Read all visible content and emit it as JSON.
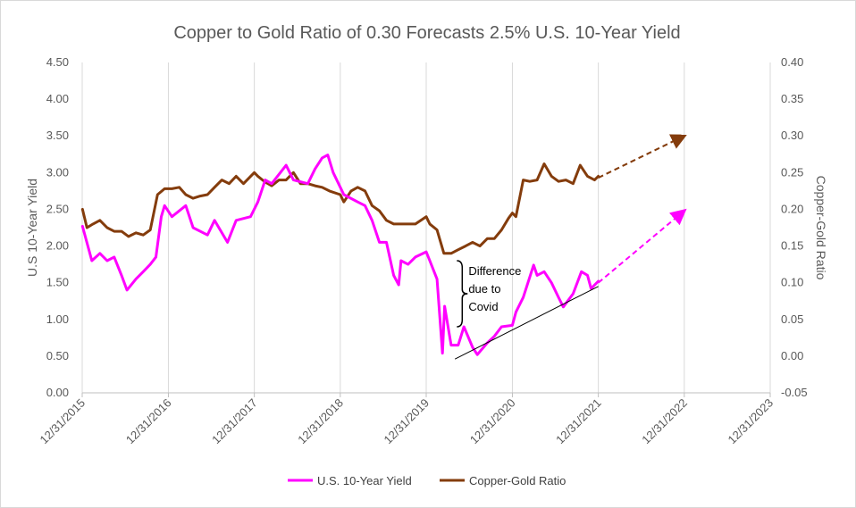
{
  "chart_data": {
    "type": "line",
    "title": "Copper to Gold Ratio of 0.30 Forecasts 2.5% U.S. 10-Year Yield",
    "ylabel": "U.S 10-Year Yield",
    "y2label": "Copper-Gold Ratio",
    "x_start": "2015-12-31",
    "x_end": "2023-12-31",
    "x_ticks": [
      "12/31/2015",
      "12/31/2016",
      "12/31/2017",
      "12/31/2018",
      "12/31/2019",
      "12/31/2020",
      "12/31/2021",
      "12/31/2022",
      "12/31/2023"
    ],
    "ylim": [
      0,
      4.5
    ],
    "y_ticks": [
      "0.00",
      "0.50",
      "1.00",
      "1.50",
      "2.00",
      "2.50",
      "3.00",
      "3.50",
      "4.00",
      "4.50"
    ],
    "y2lim": [
      -0.05,
      0.4
    ],
    "y2_ticks": [
      "-0.05",
      "0.00",
      "0.05",
      "0.10",
      "0.15",
      "0.20",
      "0.25",
      "0.30",
      "0.35",
      "0.40"
    ],
    "grid": "vertical",
    "legend_position": "bottom",
    "colors": {
      "yield": "#ff00ff",
      "ratio": "#843c0c",
      "trend": "#000000"
    },
    "series": [
      {
        "name": "U.S. 10-Year Yield",
        "axis": "left",
        "points": [
          [
            "2016-01-01",
            2.27
          ],
          [
            "2016-02-10",
            1.8
          ],
          [
            "2016-03-15",
            1.9
          ],
          [
            "2016-04-15",
            1.8
          ],
          [
            "2016-05-15",
            1.85
          ],
          [
            "2016-06-15",
            1.6
          ],
          [
            "2016-07-08",
            1.4
          ],
          [
            "2016-08-15",
            1.55
          ],
          [
            "2016-09-15",
            1.65
          ],
          [
            "2016-10-15",
            1.75
          ],
          [
            "2016-11-08",
            1.85
          ],
          [
            "2016-12-01",
            2.4
          ],
          [
            "2016-12-15",
            2.55
          ],
          [
            "2017-01-15",
            2.4
          ],
          [
            "2017-03-15",
            2.55
          ],
          [
            "2017-04-15",
            2.25
          ],
          [
            "2017-06-15",
            2.15
          ],
          [
            "2017-07-15",
            2.35
          ],
          [
            "2017-09-08",
            2.05
          ],
          [
            "2017-10-15",
            2.35
          ],
          [
            "2017-12-15",
            2.4
          ],
          [
            "2018-01-15",
            2.6
          ],
          [
            "2018-02-15",
            2.9
          ],
          [
            "2018-03-15",
            2.85
          ],
          [
            "2018-05-15",
            3.1
          ],
          [
            "2018-06-15",
            2.9
          ],
          [
            "2018-08-15",
            2.85
          ],
          [
            "2018-09-15",
            3.05
          ],
          [
            "2018-10-15",
            3.2
          ],
          [
            "2018-11-08",
            3.24
          ],
          [
            "2018-12-01",
            3.0
          ],
          [
            "2019-01-15",
            2.7
          ],
          [
            "2019-03-15",
            2.6
          ],
          [
            "2019-04-15",
            2.55
          ],
          [
            "2019-05-15",
            2.35
          ],
          [
            "2019-06-15",
            2.05
          ],
          [
            "2019-07-15",
            2.05
          ],
          [
            "2019-08-15",
            1.6
          ],
          [
            "2019-09-05",
            1.47
          ],
          [
            "2019-09-15",
            1.8
          ],
          [
            "2019-10-15",
            1.75
          ],
          [
            "2019-11-15",
            1.85
          ],
          [
            "2019-12-31",
            1.92
          ],
          [
            "2020-01-15",
            1.8
          ],
          [
            "2020-02-15",
            1.55
          ],
          [
            "2020-03-09",
            0.54
          ],
          [
            "2020-03-18",
            1.18
          ],
          [
            "2020-04-15",
            0.65
          ],
          [
            "2020-05-15",
            0.65
          ],
          [
            "2020-06-08",
            0.9
          ],
          [
            "2020-07-15",
            0.62
          ],
          [
            "2020-08-04",
            0.52
          ],
          [
            "2020-09-15",
            0.68
          ],
          [
            "2020-10-15",
            0.77
          ],
          [
            "2020-11-15",
            0.9
          ],
          [
            "2020-12-31",
            0.92
          ],
          [
            "2021-01-15",
            1.1
          ],
          [
            "2021-02-15",
            1.3
          ],
          [
            "2021-03-31",
            1.74
          ],
          [
            "2021-04-15",
            1.6
          ],
          [
            "2021-05-15",
            1.65
          ],
          [
            "2021-06-15",
            1.5
          ],
          [
            "2021-07-15",
            1.3
          ],
          [
            "2021-08-04",
            1.17
          ],
          [
            "2021-09-15",
            1.35
          ],
          [
            "2021-10-20",
            1.65
          ],
          [
            "2021-11-15",
            1.6
          ],
          [
            "2021-11-30",
            1.42
          ],
          [
            "2021-12-31",
            1.52
          ]
        ]
      },
      {
        "name": "Copper-Gold Ratio",
        "axis": "right",
        "points": [
          [
            "2016-01-01",
            0.2
          ],
          [
            "2016-01-20",
            0.175
          ],
          [
            "2016-02-15",
            0.18
          ],
          [
            "2016-03-15",
            0.185
          ],
          [
            "2016-04-15",
            0.175
          ],
          [
            "2016-05-15",
            0.17
          ],
          [
            "2016-06-15",
            0.17
          ],
          [
            "2016-07-15",
            0.163
          ],
          [
            "2016-08-15",
            0.168
          ],
          [
            "2016-09-15",
            0.165
          ],
          [
            "2016-10-15",
            0.172
          ],
          [
            "2016-11-15",
            0.22
          ],
          [
            "2016-12-15",
            0.228
          ],
          [
            "2017-01-15",
            0.228
          ],
          [
            "2017-02-15",
            0.23
          ],
          [
            "2017-03-15",
            0.22
          ],
          [
            "2017-04-15",
            0.215
          ],
          [
            "2017-05-15",
            0.218
          ],
          [
            "2017-06-15",
            0.22
          ],
          [
            "2017-07-15",
            0.23
          ],
          [
            "2017-08-15",
            0.24
          ],
          [
            "2017-09-15",
            0.235
          ],
          [
            "2017-10-15",
            0.245
          ],
          [
            "2017-11-15",
            0.235
          ],
          [
            "2017-12-31",
            0.25
          ],
          [
            "2018-01-15",
            0.245
          ],
          [
            "2018-02-15",
            0.237
          ],
          [
            "2018-03-15",
            0.232
          ],
          [
            "2018-04-15",
            0.24
          ],
          [
            "2018-05-15",
            0.24
          ],
          [
            "2018-06-15",
            0.25
          ],
          [
            "2018-07-15",
            0.235
          ],
          [
            "2018-08-15",
            0.235
          ],
          [
            "2018-09-15",
            0.232
          ],
          [
            "2018-10-15",
            0.23
          ],
          [
            "2018-11-15",
            0.225
          ],
          [
            "2018-12-31",
            0.22
          ],
          [
            "2019-01-15",
            0.21
          ],
          [
            "2019-02-15",
            0.225
          ],
          [
            "2019-03-15",
            0.23
          ],
          [
            "2019-04-15",
            0.225
          ],
          [
            "2019-05-15",
            0.205
          ],
          [
            "2019-06-15",
            0.198
          ],
          [
            "2019-07-15",
            0.185
          ],
          [
            "2019-08-15",
            0.18
          ],
          [
            "2019-09-15",
            0.18
          ],
          [
            "2019-10-15",
            0.18
          ],
          [
            "2019-11-15",
            0.18
          ],
          [
            "2019-12-31",
            0.19
          ],
          [
            "2020-01-15",
            0.18
          ],
          [
            "2020-02-15",
            0.172
          ],
          [
            "2020-03-15",
            0.14
          ],
          [
            "2020-04-15",
            0.14
          ],
          [
            "2020-05-15",
            0.145
          ],
          [
            "2020-06-15",
            0.15
          ],
          [
            "2020-07-15",
            0.155
          ],
          [
            "2020-08-15",
            0.15
          ],
          [
            "2020-09-15",
            0.16
          ],
          [
            "2020-10-15",
            0.16
          ],
          [
            "2020-11-15",
            0.172
          ],
          [
            "2020-12-15",
            0.188
          ],
          [
            "2020-12-31",
            0.195
          ],
          [
            "2021-01-15",
            0.19
          ],
          [
            "2021-02-15",
            0.24
          ],
          [
            "2021-03-15",
            0.238
          ],
          [
            "2021-04-15",
            0.24
          ],
          [
            "2021-05-15",
            0.262
          ],
          [
            "2021-06-15",
            0.245
          ],
          [
            "2021-07-15",
            0.238
          ],
          [
            "2021-08-15",
            0.24
          ],
          [
            "2021-09-15",
            0.235
          ],
          [
            "2021-10-15",
            0.26
          ],
          [
            "2021-11-15",
            0.245
          ],
          [
            "2021-12-15",
            0.24
          ],
          [
            "2021-12-31",
            0.245
          ]
        ]
      }
    ],
    "forecasts": [
      {
        "series": "Copper-Gold Ratio",
        "axis": "right",
        "from": [
          "2021-12-31",
          0.243
        ],
        "to": [
          "2022-12-31",
          0.3
        ]
      },
      {
        "series": "U.S. 10-Year Yield",
        "axis": "left",
        "from": [
          "2021-12-31",
          1.5
        ],
        "to": [
          "2022-12-31",
          2.48
        ]
      }
    ],
    "trendline": {
      "axis": "left",
      "from": [
        "2020-05-01",
        0.46
      ],
      "to": [
        "2021-12-31",
        1.45
      ]
    },
    "annotation": {
      "lines": [
        "Difference",
        "due to",
        "Covid"
      ],
      "date": "2020-06-01",
      "y_top": 1.8,
      "y_bottom": 0.9
    },
    "legend": [
      "U.S. 10-Year Yield",
      "Copper-Gold Ratio"
    ]
  }
}
